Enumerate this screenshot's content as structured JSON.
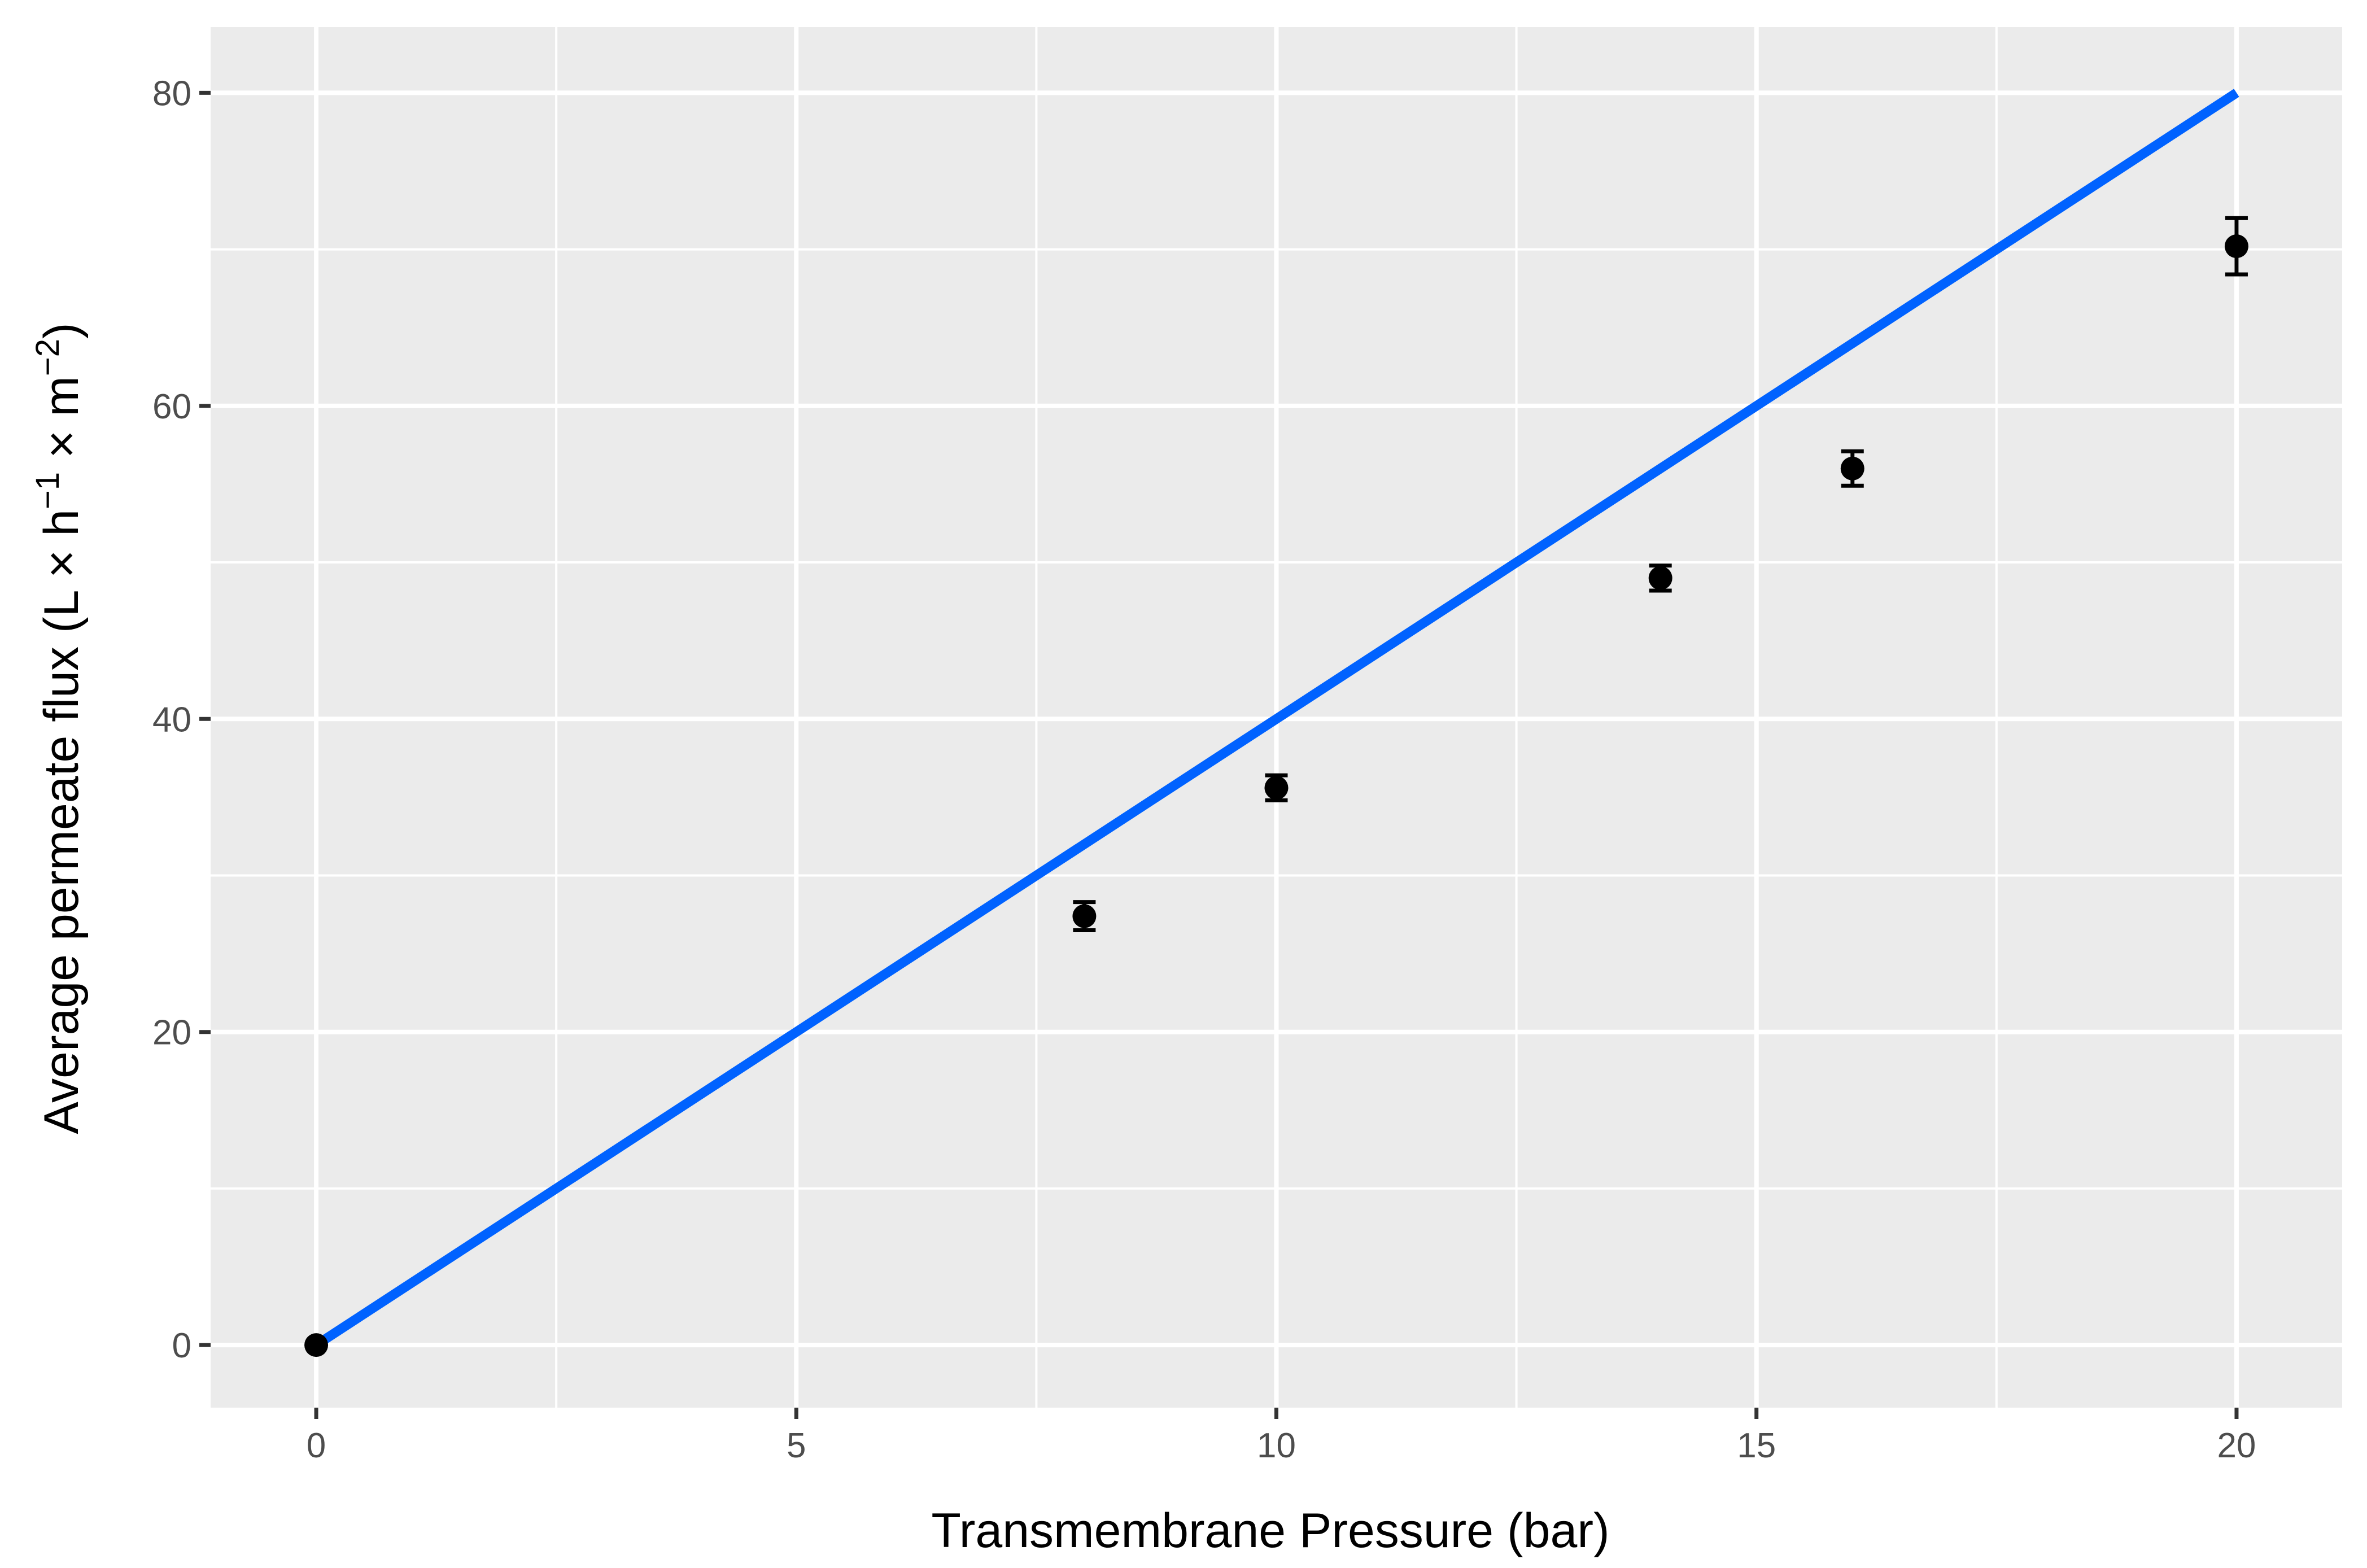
{
  "chart_data": {
    "type": "scatter",
    "xlabel": "Transmembrane Pressure (bar)",
    "ylabel_parts": [
      "Average permeate flux ",
      "(",
      "L × h",
      "−1",
      " × m",
      "−2",
      ")"
    ],
    "xlim": [
      -1.1,
      21.1
    ],
    "ylim": [
      -4,
      84.2
    ],
    "x_ticks": [
      0,
      5,
      10,
      15,
      20
    ],
    "y_ticks": [
      0,
      20,
      40,
      60,
      80
    ],
    "x_minor": [
      2.5,
      7.5,
      12.5,
      17.5
    ],
    "y_minor": [
      10,
      30,
      50,
      70
    ],
    "grid": true,
    "points": [
      {
        "x": 0,
        "y": 0,
        "err": 0
      },
      {
        "x": 8,
        "y": 27.4,
        "err": 0.9
      },
      {
        "x": 10,
        "y": 35.6,
        "err": 0.8
      },
      {
        "x": 14,
        "y": 49.0,
        "err": 0.8
      },
      {
        "x": 16,
        "y": 56.0,
        "err": 1.1
      },
      {
        "x": 20,
        "y": 70.2,
        "err": 1.8
      }
    ],
    "line": {
      "x": [
        0,
        20
      ],
      "y": [
        0,
        80
      ],
      "color": "#0062ff"
    },
    "point_color": "#000000",
    "panel_color": "#ebebeb",
    "grid_color": "#ffffff"
  }
}
